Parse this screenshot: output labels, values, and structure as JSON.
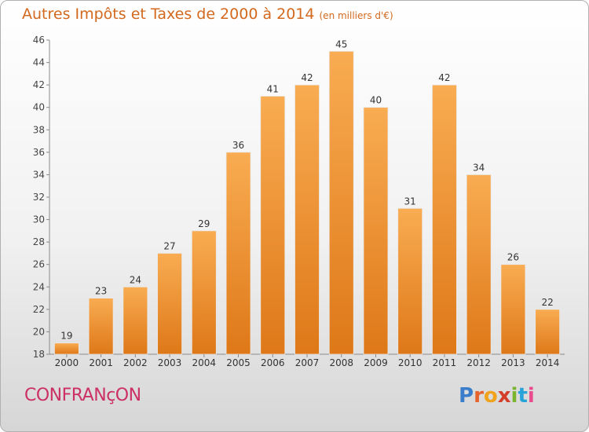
{
  "title": "Autres Impôts et Taxes de 2000 à 2014",
  "subtitle": "(en milliers d'€)",
  "commune": "CONFRANçON",
  "logo": [
    "P",
    "r",
    "o",
    "x",
    "i",
    "t",
    "i"
  ],
  "colors": {
    "bar_top": "#f7a64a",
    "bar_bottom": "#e07b1c",
    "title": "#d2691e",
    "commune": "#cc2f64"
  },
  "chart_data": {
    "type": "bar",
    "title": "Autres Impôts et Taxes de 2000 à 2014",
    "subtitle": "(en milliers d'€)",
    "categories": [
      "2000",
      "2001",
      "2002",
      "2003",
      "2004",
      "2005",
      "2006",
      "2007",
      "2008",
      "2009",
      "2010",
      "2011",
      "2012",
      "2013",
      "2014"
    ],
    "values": [
      19,
      23,
      24,
      27,
      29,
      36,
      41,
      42,
      45,
      40,
      31,
      42,
      34,
      26,
      22
    ],
    "ylim": [
      18,
      46
    ],
    "yticks": [
      18,
      20,
      22,
      24,
      26,
      28,
      30,
      32,
      34,
      36,
      38,
      40,
      42,
      44,
      46
    ],
    "grid": false,
    "xlabel": "",
    "ylabel": ""
  }
}
